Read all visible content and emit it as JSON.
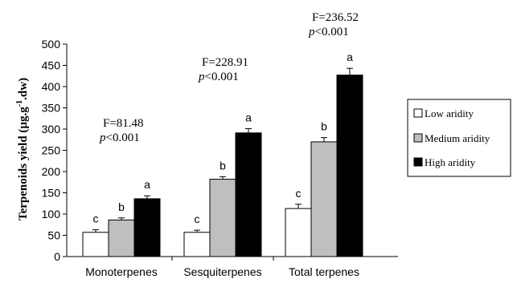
{
  "chart_data": {
    "type": "bar",
    "categories": [
      "Monoterpenes",
      "Sesquiterpenes",
      "Total terpenes"
    ],
    "series": [
      {
        "name": "Low aridity",
        "color": "#ffffff",
        "values": [
          57,
          57,
          113
        ],
        "errors": [
          6,
          5,
          10
        ],
        "letters": [
          "c",
          "c",
          "c"
        ]
      },
      {
        "name": "Medium aridity",
        "color": "#bfbfbf",
        "values": [
          86,
          182,
          270
        ],
        "errors": [
          5,
          6,
          10
        ],
        "letters": [
          "b",
          "b",
          "b"
        ]
      },
      {
        "name": "High aridity",
        "color": "#000000",
        "values": [
          136,
          291,
          427
        ],
        "errors": [
          7,
          10,
          16
        ],
        "letters": [
          "a",
          "a",
          "a"
        ]
      }
    ],
    "ylim": [
      0,
      500
    ],
    "yticks": [
      0,
      50,
      100,
      150,
      200,
      250,
      300,
      350,
      400,
      450,
      500
    ],
    "ylabel": "Terpenoids yield (µg.g⁻¹.dw)",
    "ylabel_main": "Terpenoids yield (µg.g",
    "ylabel_sup": "-1",
    "ylabel_tail": ".dw)",
    "xlabel": "",
    "grid": false,
    "legend_position": "right",
    "annotations": [
      {
        "f": "F=81.48",
        "p_italic": "p",
        "p_rest": "<0.001"
      },
      {
        "f": "F=228.91",
        "p_italic": "p",
        "p_rest": "<0.001"
      },
      {
        "f": "F=236.52",
        "p_italic": "p",
        "p_rest": "<0.001"
      }
    ]
  }
}
